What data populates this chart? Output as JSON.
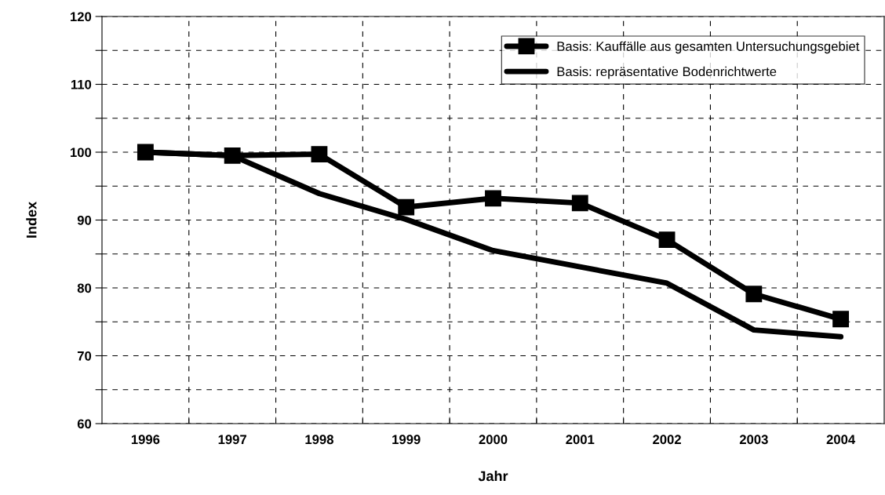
{
  "chart_data": {
    "type": "line",
    "xlabel": "Jahr",
    "ylabel": "Index",
    "categories": [
      "1996",
      "1997",
      "1998",
      "1999",
      "2000",
      "2001",
      "2002",
      "2003",
      "2004"
    ],
    "series": [
      {
        "name": "Basis: Kauffälle aus gesamten Untersuchungsgebiet",
        "color": "#000000",
        "marker": "square",
        "values": [
          100,
          99.5,
          99.7,
          91.9,
          93.2,
          92.5,
          87.1,
          79.1,
          75.4
        ]
      },
      {
        "name": "Basis: repräsentative Bodenrichtwerte",
        "color": "#000000",
        "marker": "none",
        "values": [
          100,
          99.5,
          93.9,
          90.1,
          85.5,
          83.1,
          80.7,
          73.8,
          72.8
        ]
      }
    ],
    "ylim": [
      60,
      120
    ],
    "yticks": [
      60,
      {
        "value": 65,
        "label": null
      },
      70,
      {
        "value": 75,
        "label": null
      },
      80,
      {
        "value": 85,
        "label": null
      },
      90,
      {
        "value": 95,
        "label": null
      },
      100,
      {
        "value": 105,
        "label": null
      },
      110,
      {
        "value": 115,
        "label": null
      },
      120
    ],
    "grid": true,
    "legend": "top right",
    "line_style": "solid"
  }
}
